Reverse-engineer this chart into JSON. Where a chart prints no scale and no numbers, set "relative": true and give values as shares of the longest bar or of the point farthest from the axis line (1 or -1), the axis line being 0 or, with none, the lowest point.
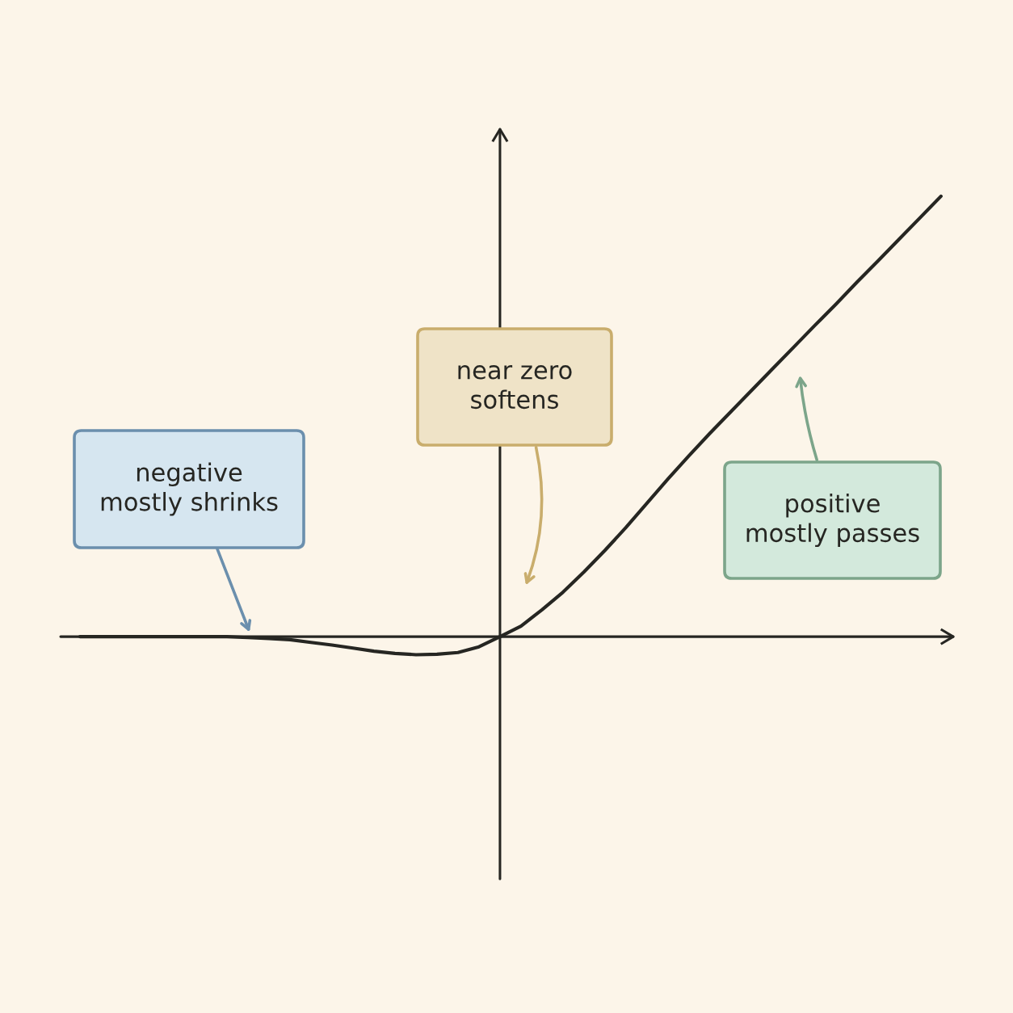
{
  "chart_data": {
    "type": "line",
    "relative": true,
    "categories": [
      null,
      null,
      null,
      null,
      null,
      null,
      null,
      null,
      null,
      null,
      null,
      null,
      null,
      null,
      null,
      null,
      null,
      null,
      null,
      null,
      null,
      null,
      null,
      null,
      null,
      null,
      null,
      null,
      null,
      null,
      null,
      null,
      null,
      null,
      null,
      null,
      null,
      null,
      null,
      null,
      null,
      null
    ],
    "series": [
      {
        "color": "#262622",
        "values": [
          0,
          0,
          0,
          0,
          0,
          0,
          0,
          0,
          -0.002,
          -0.004,
          -0.007,
          -0.013,
          -0.019,
          -0.026,
          -0.033,
          -0.038,
          -0.041,
          -0.04,
          -0.036,
          -0.023,
          0,
          0.024,
          0.061,
          0.101,
          0.147,
          0.196,
          0.248,
          0.303,
          0.358,
          0.411,
          0.462,
          0.511,
          0.56,
          0.609,
          0.658,
          0.707,
          0.755,
          0.805,
          0.853,
          0.902,
          0.951,
          1
        ]
      }
    ],
    "annotations": [
      "negative\nmostly shrinks",
      "near zero\nsoftens",
      "positive\nmostly passes"
    ]
  }
}
